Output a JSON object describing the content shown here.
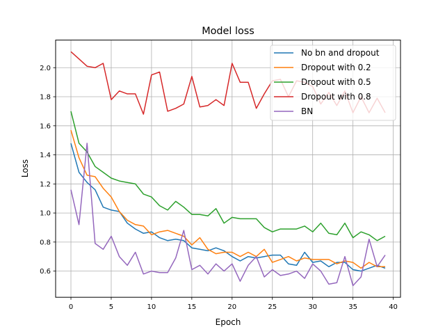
{
  "chart_data": {
    "type": "line",
    "title": "Model loss",
    "xlabel": "Epoch",
    "ylabel": "Loss",
    "xlim": [
      -1.9,
      40.9
    ],
    "ylim": [
      0.42,
      2.19
    ],
    "xticks": [
      0,
      5,
      10,
      15,
      20,
      25,
      30,
      35,
      40
    ],
    "yticks": [
      0.6,
      0.8,
      1.0,
      1.2,
      1.4,
      1.6,
      1.8,
      2.0
    ],
    "grid": true,
    "legend_position": "top-right",
    "x": [
      0,
      1,
      2,
      3,
      4,
      5,
      6,
      7,
      8,
      9,
      10,
      11,
      12,
      13,
      14,
      15,
      16,
      17,
      18,
      19,
      20,
      21,
      22,
      23,
      24,
      25,
      26,
      27,
      28,
      29,
      30,
      31,
      32,
      33,
      34,
      35,
      36,
      37,
      38,
      39
    ],
    "series": [
      {
        "name": "No bn and dropout",
        "color": "#1f77b4",
        "values": [
          1.48,
          1.28,
          1.21,
          1.16,
          1.04,
          1.02,
          1.01,
          0.93,
          0.89,
          0.86,
          0.87,
          0.83,
          0.81,
          0.82,
          0.81,
          0.76,
          0.75,
          0.74,
          0.76,
          0.74,
          0.7,
          0.67,
          0.7,
          0.69,
          0.7,
          0.71,
          0.71,
          0.65,
          0.64,
          0.73,
          0.66,
          0.67,
          0.63,
          0.66,
          0.66,
          0.61,
          0.6,
          0.62,
          0.64,
          0.62
        ]
      },
      {
        "name": "Dropout with 0.2",
        "color": "#ff7f0e",
        "values": [
          1.57,
          1.38,
          1.26,
          1.25,
          1.17,
          1.11,
          1.01,
          0.95,
          0.92,
          0.91,
          0.85,
          0.87,
          0.88,
          0.86,
          0.84,
          0.78,
          0.83,
          0.75,
          0.72,
          0.73,
          0.73,
          0.7,
          0.73,
          0.7,
          0.75,
          0.66,
          0.68,
          0.7,
          0.67,
          0.69,
          0.68,
          0.68,
          0.68,
          0.65,
          0.67,
          0.66,
          0.62,
          0.66,
          0.63,
          0.63
        ]
      },
      {
        "name": "Dropout with 0.5",
        "color": "#2ca02c",
        "values": [
          1.7,
          1.48,
          1.42,
          1.32,
          1.28,
          1.24,
          1.22,
          1.21,
          1.2,
          1.13,
          1.11,
          1.05,
          1.02,
          1.08,
          1.04,
          0.99,
          0.99,
          0.98,
          1.03,
          0.93,
          0.97,
          0.96,
          0.96,
          0.96,
          0.9,
          0.87,
          0.89,
          0.89,
          0.89,
          0.91,
          0.87,
          0.93,
          0.86,
          0.85,
          0.93,
          0.83,
          0.87,
          0.85,
          0.81,
          0.84
        ]
      },
      {
        "name": "Dropout with 0.8",
        "color": "#d62728",
        "values": [
          2.11,
          2.06,
          2.01,
          2.0,
          2.03,
          1.78,
          1.84,
          1.82,
          1.82,
          1.68,
          1.95,
          1.97,
          1.7,
          1.72,
          1.75,
          1.94,
          1.73,
          1.74,
          1.78,
          1.74,
          2.03,
          1.9,
          1.9,
          1.72,
          1.82,
          1.91,
          1.92,
          1.8,
          1.91,
          1.9,
          1.87,
          1.75,
          1.83,
          1.74,
          1.84,
          1.69,
          1.8,
          1.69,
          1.79,
          1.69
        ]
      },
      {
        "name": "BN",
        "color": "#9467bd",
        "values": [
          1.16,
          0.92,
          1.48,
          0.79,
          0.75,
          0.84,
          0.7,
          0.64,
          0.73,
          0.58,
          0.6,
          0.59,
          0.59,
          0.69,
          0.88,
          0.61,
          0.64,
          0.58,
          0.65,
          0.6,
          0.65,
          0.53,
          0.64,
          0.7,
          0.56,
          0.61,
          0.57,
          0.58,
          0.6,
          0.55,
          0.65,
          0.6,
          0.51,
          0.52,
          0.7,
          0.5,
          0.56,
          0.82,
          0.63,
          0.71
        ]
      }
    ]
  }
}
